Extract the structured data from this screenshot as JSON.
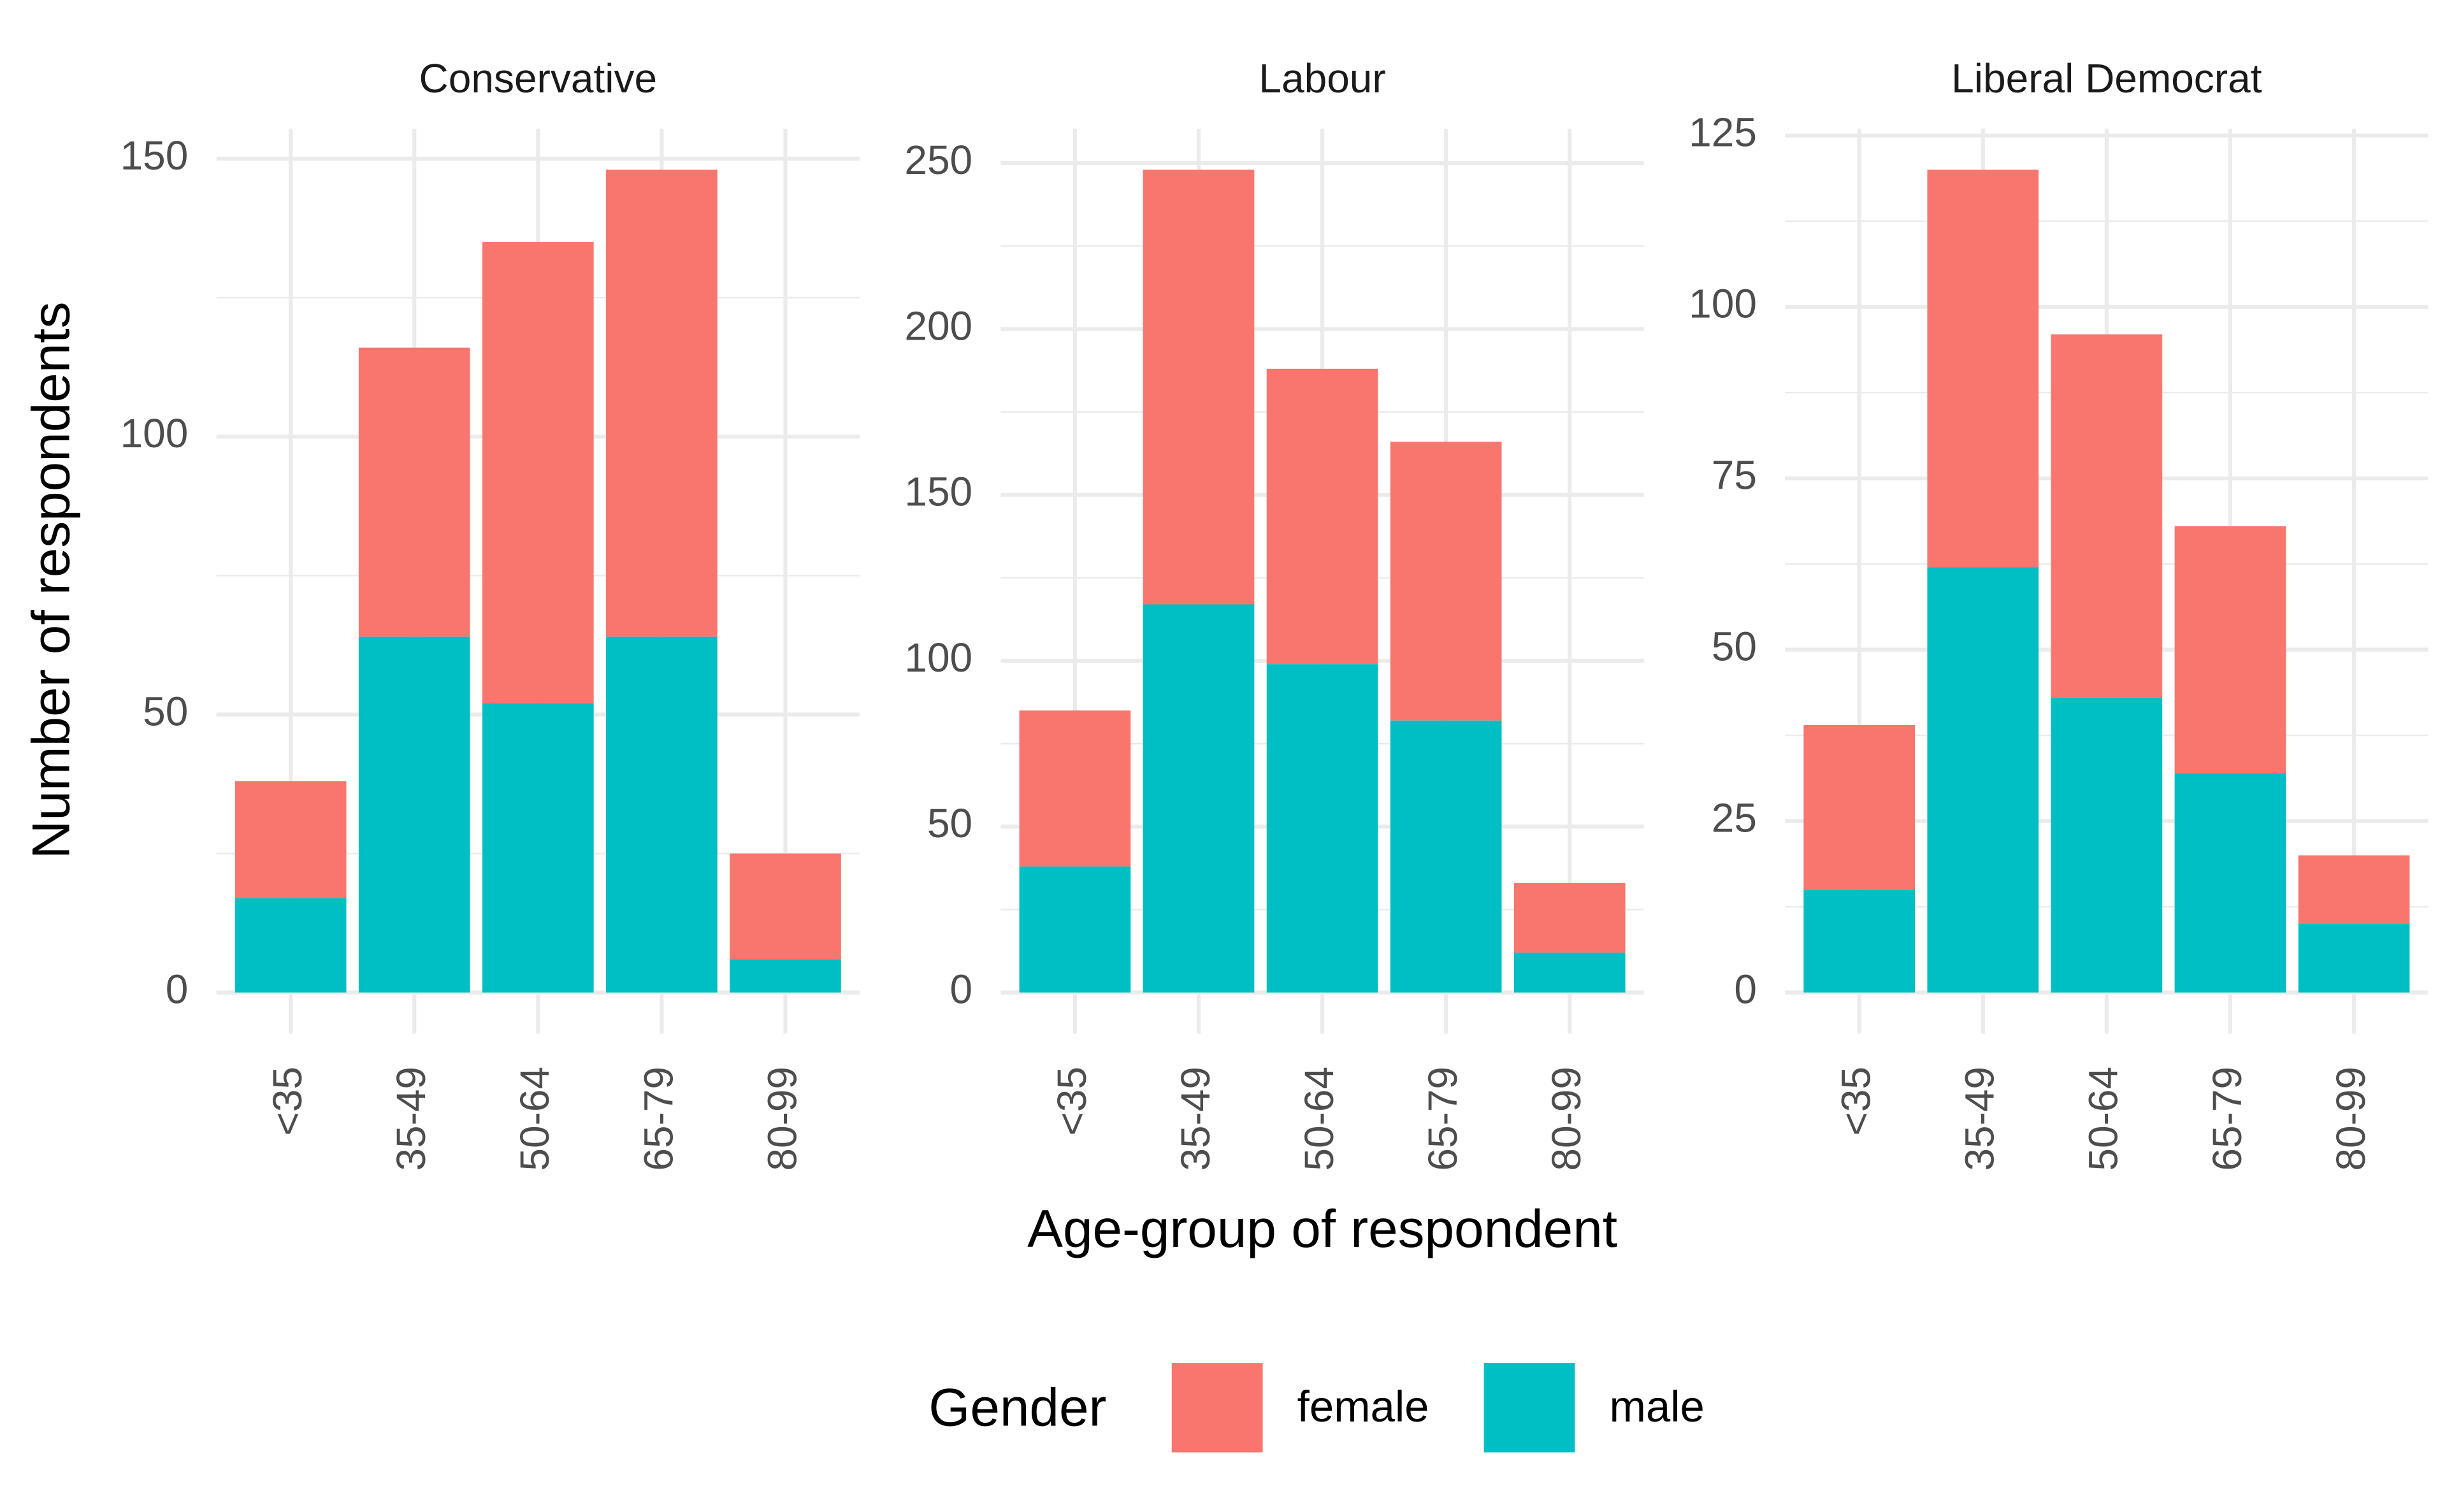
{
  "y_label": "Number of respondents",
  "x_label": "Age-group of respondent",
  "legend_title": "Gender",
  "chart_data": [
    {
      "type": "bar",
      "stacked": true,
      "title": "Conservative",
      "grid": true,
      "categories": [
        "<35",
        "35-49",
        "50-64",
        "65-79",
        "80-99"
      ],
      "series": [
        {
          "name": "female",
          "color": "#f8766d",
          "values": [
            21,
            52,
            83,
            84,
            19
          ]
        },
        {
          "name": "male",
          "color": "#00bfc4",
          "values": [
            17,
            64,
            52,
            64,
            6
          ]
        }
      ],
      "ylim": [
        -7.4,
        155.4
      ],
      "yticks": [
        0,
        50,
        100,
        150
      ]
    },
    {
      "type": "bar",
      "stacked": true,
      "title": "Labour",
      "grid": true,
      "categories": [
        "<35",
        "35-49",
        "50-64",
        "65-79",
        "80-99"
      ],
      "series": [
        {
          "name": "female",
          "color": "#f8766d",
          "values": [
            47,
            131,
            89,
            84,
            21
          ]
        },
        {
          "name": "male",
          "color": "#00bfc4",
          "values": [
            38,
            117,
            99,
            82,
            12
          ]
        }
      ],
      "ylim": [
        -12.4,
        260.4
      ],
      "yticks": [
        0,
        50,
        100,
        150,
        200,
        250
      ]
    },
    {
      "type": "bar",
      "stacked": true,
      "title": "Liberal Democrat",
      "grid": true,
      "categories": [
        "<35",
        "35-49",
        "50-64",
        "65-79",
        "80-99"
      ],
      "series": [
        {
          "name": "female",
          "color": "#f8766d",
          "values": [
            24,
            58,
            53,
            36,
            10
          ]
        },
        {
          "name": "male",
          "color": "#00bfc4",
          "values": [
            15,
            62,
            43,
            32,
            10
          ]
        }
      ],
      "ylim": [
        -6,
        126
      ],
      "yticks": [
        0,
        25,
        50,
        75,
        100,
        125
      ]
    }
  ]
}
